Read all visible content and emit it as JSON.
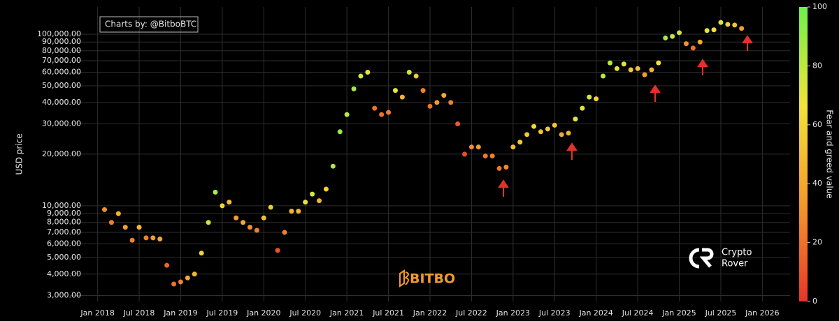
{
  "chart_data": {
    "type": "scatter",
    "watermark": "Charts by: @BitboBTC",
    "brand": "BITBO",
    "logo_text": [
      "Crypto",
      "Rover"
    ],
    "y_label": "USD price",
    "colorbar_label": "Fear and greed value",
    "log_y": true,
    "grid": true,
    "colorscale": [
      "#e8352a",
      "#f39a2b",
      "#f2e33c",
      "#6ef04a"
    ],
    "clim": [
      0,
      100
    ],
    "cticks": [
      0,
      20,
      40,
      60,
      80,
      100
    ],
    "xlim": [
      "2017-09",
      "2026-05"
    ],
    "xticks": [
      {
        "value": "2018-01",
        "label": "Jan 2018"
      },
      {
        "value": "2018-07",
        "label": "Jul 2018"
      },
      {
        "value": "2019-01",
        "label": "Jan 2019"
      },
      {
        "value": "2019-07",
        "label": "Jul 2019"
      },
      {
        "value": "2020-01",
        "label": "Jan 2020"
      },
      {
        "value": "2020-07",
        "label": "Jul 2020"
      },
      {
        "value": "2021-01",
        "label": "Jan 2021"
      },
      {
        "value": "2021-07",
        "label": "Jul 2021"
      },
      {
        "value": "2022-01",
        "label": "Jan 2022"
      },
      {
        "value": "2022-07",
        "label": "Jul 2022"
      },
      {
        "value": "2023-01",
        "label": "Jan 2023"
      },
      {
        "value": "2023-07",
        "label": "Jul 2023"
      },
      {
        "value": "2024-01",
        "label": "Jan 2024"
      },
      {
        "value": "2024-07",
        "label": "Jul 2024"
      },
      {
        "value": "2025-01",
        "label": "Jan 2025"
      },
      {
        "value": "2025-07",
        "label": "Jul 2025"
      },
      {
        "value": "2026-01",
        "label": "Jan 2026"
      }
    ],
    "ylim": [
      2770,
      144000
    ],
    "yticks": [
      {
        "value": 3000,
        "label": "3,000.00"
      },
      {
        "value": 4000,
        "label": "4,000.00"
      },
      {
        "value": 5000,
        "label": "5,000.00"
      },
      {
        "value": 6000,
        "label": "6,000.00"
      },
      {
        "value": 7000,
        "label": "7,000.00"
      },
      {
        "value": 8000,
        "label": "8,000.00"
      },
      {
        "value": 9000,
        "label": "9,000.00"
      },
      {
        "value": 10000,
        "label": "10,000.00"
      },
      {
        "value": 20000,
        "label": "20,000.00"
      },
      {
        "value": 30000,
        "label": "30,000.00"
      },
      {
        "value": 40000,
        "label": "40,000.00"
      },
      {
        "value": 50000,
        "label": "50,000.00"
      },
      {
        "value": 60000,
        "label": "60,000.00"
      },
      {
        "value": 70000,
        "label": "70,000.00"
      },
      {
        "value": 80000,
        "label": "80,000.00"
      },
      {
        "value": 90000,
        "label": "90,000.00"
      },
      {
        "value": 100000,
        "label": "100,000.00"
      }
    ],
    "x": [
      "2018-02",
      "2018-03",
      "2018-04",
      "2018-05",
      "2018-06",
      "2018-07",
      "2018-08",
      "2018-09",
      "2018-10",
      "2018-11",
      "2018-12",
      "2019-01",
      "2019-02",
      "2019-03",
      "2019-04",
      "2019-05",
      "2019-06",
      "2019-07",
      "2019-08",
      "2019-09",
      "2019-10",
      "2019-11",
      "2019-12",
      "2020-01",
      "2020-02",
      "2020-03",
      "2020-04",
      "2020-05",
      "2020-06",
      "2020-07",
      "2020-08",
      "2020-09",
      "2020-10",
      "2020-11",
      "2020-12",
      "2021-01",
      "2021-02",
      "2021-03",
      "2021-04",
      "2021-05",
      "2021-06",
      "2021-07",
      "2021-08",
      "2021-09",
      "2021-10",
      "2021-11",
      "2021-12",
      "2022-01",
      "2022-02",
      "2022-03",
      "2022-04",
      "2022-05",
      "2022-06",
      "2022-07",
      "2022-08",
      "2022-09",
      "2022-10",
      "2022-11",
      "2022-12",
      "2023-01",
      "2023-02",
      "2023-03",
      "2023-04",
      "2023-05",
      "2023-06",
      "2023-07",
      "2023-08",
      "2023-09",
      "2023-10",
      "2023-11",
      "2023-12",
      "2024-01",
      "2024-02",
      "2024-03",
      "2024-04",
      "2024-05",
      "2024-06",
      "2024-07",
      "2024-08",
      "2024-09",
      "2024-10",
      "2024-11",
      "2024-12",
      "2025-01",
      "2025-02",
      "2025-03",
      "2025-04",
      "2025-05",
      "2025-06",
      "2025-07",
      "2025-08",
      "2025-09",
      "2025-10"
    ],
    "values": [
      9500,
      8000,
      9000,
      7500,
      6300,
      7500,
      6500,
      6500,
      6400,
      4500,
      3500,
      3600,
      3800,
      4000,
      5300,
      8000,
      12000,
      10000,
      10500,
      8500,
      8000,
      7500,
      7200,
      8500,
      9800,
      5500,
      7000,
      9300,
      9300,
      10500,
      11700,
      10700,
      12500,
      17000,
      27000,
      34000,
      48000,
      57000,
      60000,
      37000,
      34000,
      35000,
      47000,
      43000,
      60000,
      57000,
      47000,
      38000,
      40000,
      44000,
      40000,
      30000,
      20000,
      22000,
      22000,
      19500,
      19500,
      16500,
      16800,
      22000,
      23500,
      26000,
      29000,
      27000,
      28000,
      29500,
      26000,
      26500,
      32000,
      37000,
      43000,
      42000,
      57000,
      68000,
      63000,
      67000,
      62000,
      63000,
      58000,
      62000,
      68000,
      95000,
      97000,
      102000,
      88000,
      83000,
      90000,
      105000,
      106000,
      117000,
      114000,
      113000,
      108000
    ],
    "fear_greed": [
      30,
      25,
      45,
      35,
      25,
      45,
      25,
      35,
      40,
      15,
      20,
      25,
      40,
      45,
      60,
      75,
      85,
      60,
      50,
      35,
      40,
      30,
      25,
      50,
      55,
      10,
      25,
      45,
      45,
      70,
      75,
      45,
      60,
      85,
      92,
      80,
      85,
      75,
      70,
      20,
      20,
      25,
      70,
      45,
      75,
      55,
      25,
      20,
      35,
      40,
      25,
      12,
      8,
      30,
      35,
      22,
      25,
      20,
      28,
      50,
      55,
      55,
      62,
      50,
      55,
      52,
      40,
      45,
      70,
      72,
      75,
      60,
      80,
      82,
      70,
      70,
      55,
      50,
      35,
      45,
      65,
      85,
      78,
      75,
      30,
      20,
      40,
      70,
      65,
      72,
      60,
      52,
      35
    ]
  }
}
